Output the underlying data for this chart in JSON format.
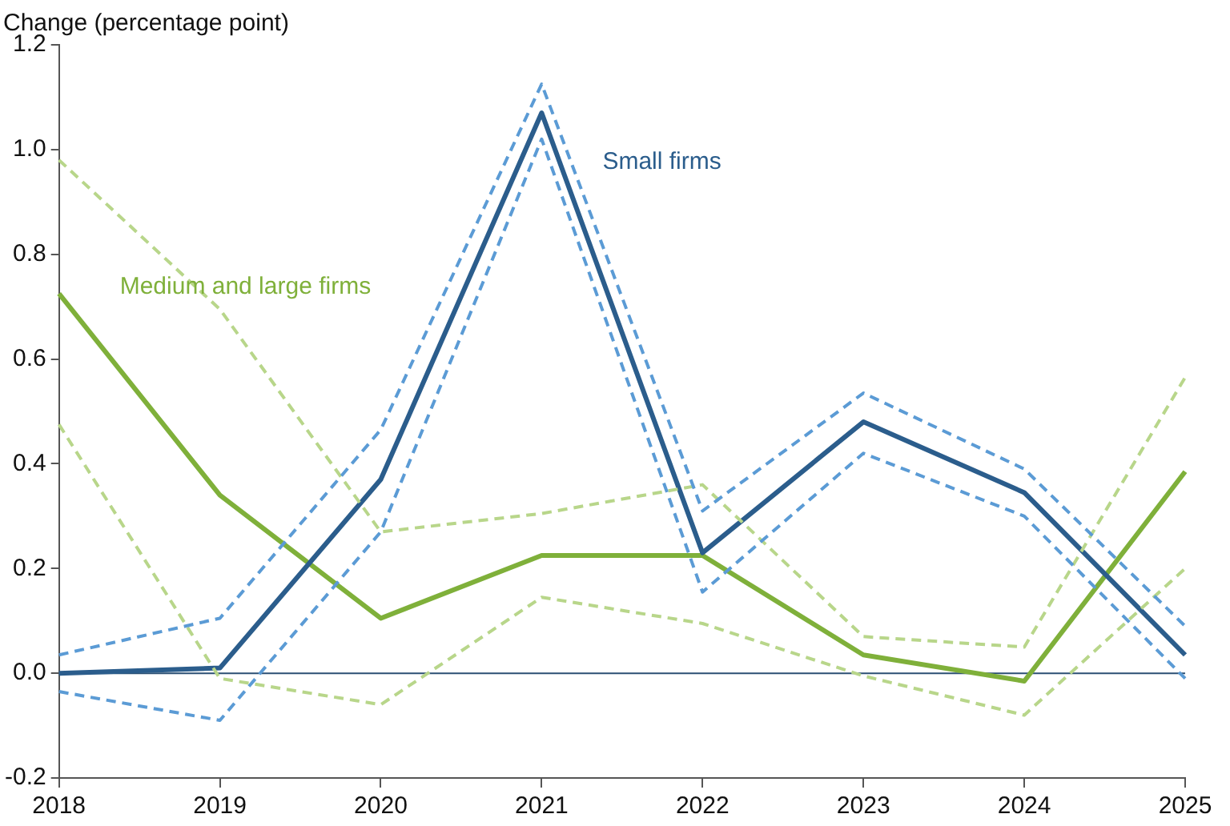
{
  "chart_data": {
    "type": "line",
    "ylabel": "Change (percentage point)",
    "categories": [
      "2018",
      "2019",
      "2020",
      "2021",
      "2022",
      "2023",
      "2024",
      "2025"
    ],
    "ylim": [
      -0.2,
      1.2
    ],
    "yticks": [
      {
        "value": -0.2,
        "label": "-0.2"
      },
      {
        "value": 0,
        "label": "0.0"
      },
      {
        "value": 0.2,
        "label": "0.2"
      },
      {
        "value": 0.4,
        "label": "0.4"
      },
      {
        "value": 0.6,
        "label": "0.6"
      },
      {
        "value": 0.8,
        "label": "0.8"
      },
      {
        "value": 1,
        "label": "1.0"
      },
      {
        "value": 1.2,
        "label": "1.2"
      }
    ],
    "grid": false,
    "legend": false,
    "marker": "none",
    "ref_lines": [
      {
        "axis": "y",
        "value": 0,
        "color": "#2b4f73",
        "line_style": "solid"
      }
    ],
    "series": [
      {
        "color": "#5b9bd5",
        "line_style": "dashed",
        "values": [
          0.035,
          0.105,
          0.465,
          1.125,
          0.31,
          0.535,
          0.39,
          0.09
        ]
      },
      {
        "color": "#5b9bd5",
        "line_style": "dashed",
        "values": [
          -0.035,
          -0.09,
          0.27,
          1.02,
          0.155,
          0.42,
          0.3,
          -0.01
        ]
      },
      {
        "color": "#b8d68a",
        "line_style": "dashed",
        "values": [
          0.98,
          0.695,
          0.27,
          0.305,
          0.36,
          0.07,
          0.05,
          0.565
        ]
      },
      {
        "color": "#b8d68a",
        "line_style": "dashed",
        "values": [
          0.475,
          -0.01,
          -0.06,
          0.145,
          0.095,
          -0.005,
          -0.08,
          0.2
        ]
      },
      {
        "name": "Small firms",
        "color": "#2b5d8c",
        "line_style": "solid",
        "values": [
          0,
          0.01,
          0.37,
          1.07,
          0.23,
          0.48,
          0.345,
          0.035
        ]
      },
      {
        "name": "Medium and large firms",
        "color": "#7fb03a",
        "line_style": "solid",
        "values": [
          0.725,
          0.34,
          0.105,
          0.225,
          0.225,
          0.035,
          -0.015,
          0.385
        ]
      }
    ]
  }
}
